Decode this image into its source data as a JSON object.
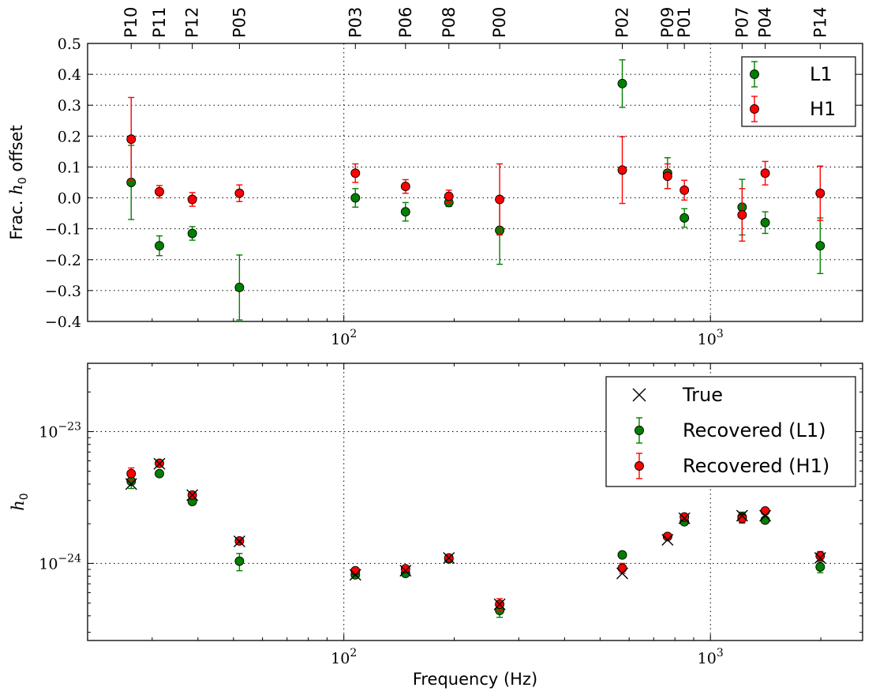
{
  "chart_data": [
    {
      "type": "scatter",
      "panel": "top",
      "title": "",
      "xlabel": "",
      "ylabel": "Frac. h0 offset",
      "x_scale": "log",
      "xlim": [
        20,
        2600
      ],
      "ylim": [
        -0.4,
        0.5
      ],
      "grid": true,
      "legend_position": "top-right",
      "y_ticks": [
        "0.5",
        "0.4",
        "0.3",
        "0.2",
        "0.1",
        "0.0",
        "−0.1",
        "−0.2",
        "−0.3",
        "−0.4"
      ],
      "x_ticks": [
        "10^2",
        "10^3"
      ],
      "pulsar_labels": [
        "P10",
        "P11",
        "P12",
        "P05",
        "P03",
        "P06",
        "P08",
        "P00",
        "P02",
        "P09",
        "P01",
        "P07",
        "P04",
        "P14"
      ],
      "pulsar_freqs": [
        26.3,
        31.4,
        38.6,
        51.9,
        107.5,
        147.3,
        193.4,
        266.1,
        574.8,
        763.7,
        848.9,
        1220.0,
        1410.3,
        1992.6
      ],
      "series": [
        {
          "name": "L1",
          "color": "#008000",
          "points": [
            {
              "x": 26.3,
              "y": 0.05,
              "err": 0.12
            },
            {
              "x": 31.4,
              "y": -0.155,
              "err": 0.032
            },
            {
              "x": 38.6,
              "y": -0.115,
              "err": 0.022
            },
            {
              "x": 51.9,
              "y": -0.29,
              "err": 0.105
            },
            {
              "x": 107.5,
              "y": 0.0,
              "err": 0.03
            },
            {
              "x": 147.3,
              "y": -0.045,
              "err": 0.03
            },
            {
              "x": 193.4,
              "y": -0.015,
              "err": 0.013
            },
            {
              "x": 266.1,
              "y": -0.105,
              "err": 0.11
            },
            {
              "x": 574.8,
              "y": 0.37,
              "err": 0.077
            },
            {
              "x": 763.7,
              "y": 0.08,
              "err": 0.05
            },
            {
              "x": 848.9,
              "y": -0.065,
              "err": 0.03
            },
            {
              "x": 1220.0,
              "y": -0.03,
              "err": 0.09
            },
            {
              "x": 1410.3,
              "y": -0.08,
              "err": 0.035
            },
            {
              "x": 1992.6,
              "y": -0.155,
              "err": 0.09
            }
          ]
        },
        {
          "name": "H1",
          "color": "#ff0000",
          "points": [
            {
              "x": 26.3,
              "y": 0.19,
              "err": 0.135
            },
            {
              "x": 31.4,
              "y": 0.02,
              "err": 0.02
            },
            {
              "x": 38.6,
              "y": -0.005,
              "err": 0.022
            },
            {
              "x": 51.9,
              "y": 0.015,
              "err": 0.027
            },
            {
              "x": 107.5,
              "y": 0.08,
              "err": 0.03
            },
            {
              "x": 147.3,
              "y": 0.037,
              "err": 0.022
            },
            {
              "x": 193.4,
              "y": 0.005,
              "err": 0.02
            },
            {
              "x": 266.1,
              "y": -0.005,
              "err": 0.115
            },
            {
              "x": 574.8,
              "y": 0.09,
              "err": 0.108
            },
            {
              "x": 763.7,
              "y": 0.07,
              "err": 0.04
            },
            {
              "x": 848.9,
              "y": 0.025,
              "err": 0.032
            },
            {
              "x": 1220.0,
              "y": -0.055,
              "err": 0.085
            },
            {
              "x": 1410.3,
              "y": 0.08,
              "err": 0.038
            },
            {
              "x": 1992.6,
              "y": 0.015,
              "err": 0.088
            }
          ]
        }
      ]
    },
    {
      "type": "scatter",
      "panel": "bottom",
      "title": "",
      "xlabel": "Frequency (Hz)",
      "ylabel": "h0",
      "x_scale": "log",
      "y_scale": "log",
      "xlim": [
        20,
        2600
      ],
      "ylim": [
        2.6e-25,
        3.3e-23
      ],
      "grid": true,
      "legend_position": "top-right",
      "y_ticks": [
        "10^-23",
        "10^-24"
      ],
      "x_ticks": [
        "10^2",
        "10^3"
      ],
      "series": [
        {
          "name": "True",
          "marker": "x",
          "color": "#000000",
          "points": [
            {
              "x": 26.3,
              "y": 4e-24
            },
            {
              "x": 31.4,
              "y": 5.7e-24
            },
            {
              "x": 38.6,
              "y": 3.3e-24
            },
            {
              "x": 51.9,
              "y": 1.47e-24
            },
            {
              "x": 107.5,
              "y": 8.2e-25
            },
            {
              "x": 147.3,
              "y": 8.8e-25
            },
            {
              "x": 193.4,
              "y": 1.1e-24
            },
            {
              "x": 266.1,
              "y": 4.9e-25
            },
            {
              "x": 574.8,
              "y": 8.4e-25
            },
            {
              "x": 763.7,
              "y": 1.51e-24
            },
            {
              "x": 848.9,
              "y": 2.2e-24
            },
            {
              "x": 1220.0,
              "y": 2.3e-24
            },
            {
              "x": 1410.3,
              "y": 2.3e-24
            },
            {
              "x": 1992.6,
              "y": 1.1e-24
            }
          ]
        },
        {
          "name": "Recovered (L1)",
          "color": "#008000",
          "points": [
            {
              "x": 26.3,
              "y": 4.2e-24,
              "lo": 3.7e-24,
              "hi": 4.7e-24
            },
            {
              "x": 31.4,
              "y": 4.8e-24,
              "lo": 4.6e-24,
              "hi": 5e-24
            },
            {
              "x": 38.6,
              "y": 2.95e-24,
              "lo": 2.85e-24,
              "hi": 3.05e-24
            },
            {
              "x": 51.9,
              "y": 1.04e-24,
              "lo": 8.8e-25,
              "hi": 1.19e-24
            },
            {
              "x": 107.5,
              "y": 8.2e-25,
              "lo": 7.9e-25,
              "hi": 8.5e-25
            },
            {
              "x": 147.3,
              "y": 8.4e-25,
              "lo": 8.1e-25,
              "hi": 8.7e-25
            },
            {
              "x": 193.4,
              "y": 1.08e-24,
              "lo": 1.06e-24,
              "hi": 1.11e-24
            },
            {
              "x": 266.1,
              "y": 4.4e-25,
              "lo": 3.9e-25,
              "hi": 4.9e-25
            },
            {
              "x": 574.8,
              "y": 1.16e-24,
              "lo": 1.11e-24,
              "hi": 1.21e-24
            },
            {
              "x": 763.7,
              "y": 1.6e-24,
              "lo": 1.55e-24,
              "hi": 1.65e-24
            },
            {
              "x": 848.9,
              "y": 2.07e-24,
              "lo": 2e-24,
              "hi": 2.14e-24
            },
            {
              "x": 1220.0,
              "y": 2.25e-24,
              "lo": 2.05e-24,
              "hi": 2.45e-24
            },
            {
              "x": 1410.3,
              "y": 2.13e-24,
              "lo": 2.05e-24,
              "hi": 2.21e-24
            },
            {
              "x": 1992.6,
              "y": 9.4e-25,
              "lo": 8.5e-25,
              "hi": 1.03e-24
            }
          ]
        },
        {
          "name": "Recovered (H1)",
          "color": "#ff0000",
          "points": [
            {
              "x": 26.3,
              "y": 4.8e-24,
              "lo": 4.3e-24,
              "hi": 5.3e-24
            },
            {
              "x": 31.4,
              "y": 5.75e-24,
              "lo": 5.6e-24,
              "hi": 5.9e-24
            },
            {
              "x": 38.6,
              "y": 3.3e-24,
              "lo": 3.2e-24,
              "hi": 3.4e-24
            },
            {
              "x": 51.9,
              "y": 1.48e-24,
              "lo": 1.44e-24,
              "hi": 1.52e-24
            },
            {
              "x": 107.5,
              "y": 8.8e-25,
              "lo": 8.6e-25,
              "hi": 9e-25
            },
            {
              "x": 147.3,
              "y": 9.1e-25,
              "lo": 8.9e-25,
              "hi": 9.3e-25
            },
            {
              "x": 193.4,
              "y": 1.1e-24,
              "lo": 1.08e-24,
              "hi": 1.12e-24
            },
            {
              "x": 266.1,
              "y": 4.9e-25,
              "lo": 4.4e-25,
              "hi": 5.4e-25
            },
            {
              "x": 574.8,
              "y": 9.2e-25,
              "lo": 8.4e-25,
              "hi": 1e-24
            },
            {
              "x": 763.7,
              "y": 1.6e-24,
              "lo": 1.54e-24,
              "hi": 1.66e-24
            },
            {
              "x": 848.9,
              "y": 2.25e-24,
              "lo": 2.18e-24,
              "hi": 2.32e-24
            },
            {
              "x": 1220.0,
              "y": 2.2e-24,
              "lo": 2.02e-24,
              "hi": 2.38e-24
            },
            {
              "x": 1410.3,
              "y": 2.5e-24,
              "lo": 2.41e-24,
              "hi": 2.59e-24
            },
            {
              "x": 1992.6,
              "y": 1.14e-24,
              "lo": 1.05e-24,
              "hi": 1.23e-24
            }
          ]
        }
      ]
    }
  ]
}
